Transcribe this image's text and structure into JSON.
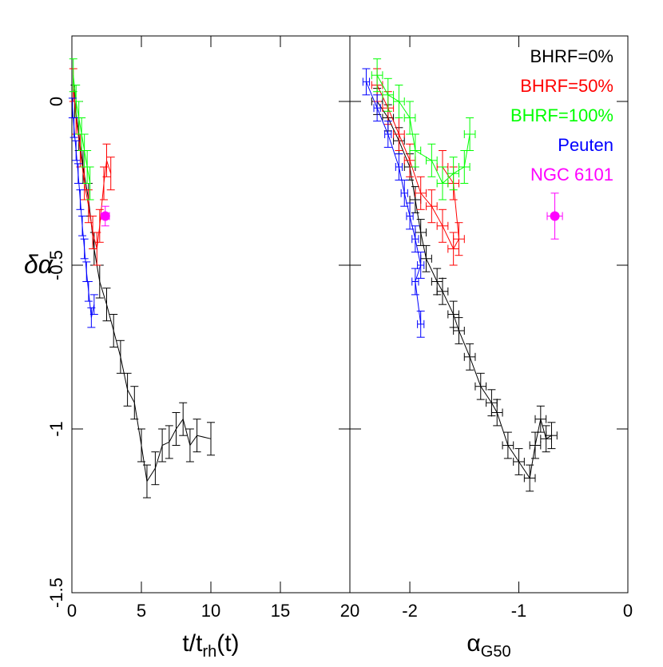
{
  "chart_data": [
    {
      "type": "errorbar",
      "x_label": {
        "main": "t/t",
        "sub": "rh",
        "tail": "(t)"
      },
      "y_label": "δα",
      "xlim": [
        0,
        20
      ],
      "ylim": [
        -1.5,
        0.2
      ],
      "xticks": [
        0,
        5,
        10,
        15,
        20
      ],
      "yticks": [
        0,
        -0.5,
        -1,
        -1.5
      ],
      "series": [
        {
          "color": "#000000",
          "x": [
            0.2,
            0.5,
            0.8,
            1.2,
            1.6,
            2.0,
            2.5,
            3.0,
            3.5,
            4.0,
            4.5,
            5.0,
            5.4,
            6.0,
            6.5,
            7.0,
            7.5,
            8.0,
            8.5,
            9.0,
            10.0
          ],
          "y": [
            0.0,
            -0.1,
            -0.2,
            -0.3,
            -0.45,
            -0.55,
            -0.62,
            -0.7,
            -0.78,
            -0.88,
            -0.92,
            -1.05,
            -1.16,
            -1.12,
            -1.05,
            -1.04,
            -1.0,
            -0.97,
            -1.05,
            -1.02,
            -1.03
          ],
          "yerr": 0.05
        },
        {
          "color": "#ff0000",
          "x": [
            0.1,
            0.3,
            0.6,
            0.9,
            1.2,
            1.5,
            1.8,
            2.0,
            2.3,
            2.5,
            2.8
          ],
          "y": [
            0.05,
            -0.05,
            -0.15,
            -0.25,
            -0.32,
            -0.4,
            -0.45,
            -0.38,
            -0.25,
            -0.18,
            -0.22
          ],
          "yerr": 0.05
        },
        {
          "color": "#00ff00",
          "x": [
            0.1,
            0.3,
            0.5,
            0.7,
            0.9,
            1.1,
            1.3
          ],
          "y": [
            0.08,
            0.0,
            -0.05,
            -0.1,
            -0.15,
            -0.2,
            -0.25
          ],
          "yerr": 0.05
        },
        {
          "color": "#0000ff",
          "x": [
            0.05,
            0.15,
            0.3,
            0.45,
            0.6,
            0.75,
            0.9,
            1.05,
            1.2,
            1.4,
            1.6
          ],
          "y": [
            -0.02,
            -0.08,
            -0.15,
            -0.22,
            -0.3,
            -0.38,
            -0.45,
            -0.52,
            -0.58,
            -0.66,
            -0.62
          ],
          "yerr": 0.03
        },
        {
          "color": "#ff00ff",
          "marker": "circle",
          "x": [
            2.4
          ],
          "y": [
            -0.35
          ],
          "yerr": 0.03,
          "xerr": 0.3
        }
      ]
    },
    {
      "type": "errorbar",
      "x_label": {
        "main": "α",
        "sub": "G50",
        "tail": ""
      },
      "xlim": [
        -2.55,
        0
      ],
      "ylim": [
        -1.5,
        0.2
      ],
      "xticks": [
        -2,
        -1,
        0
      ],
      "yticks": [
        0,
        -0.5,
        -1,
        -1.5
      ],
      "legend": "upper right",
      "series": [
        {
          "name": "BHRF=0%",
          "color": "#000000",
          "x": [
            -2.3,
            -2.2,
            -2.1,
            -2.0,
            -1.95,
            -1.9,
            -1.85,
            -1.75,
            -1.7,
            -1.6,
            -1.55,
            -1.45,
            -1.35,
            -1.25,
            -1.2,
            -1.1,
            -1.0,
            -0.9,
            -0.85,
            -0.8,
            -0.75,
            -0.7
          ],
          "y": [
            0.0,
            -0.05,
            -0.12,
            -0.2,
            -0.3,
            -0.4,
            -0.48,
            -0.55,
            -0.58,
            -0.65,
            -0.7,
            -0.78,
            -0.87,
            -0.92,
            -0.95,
            -1.05,
            -1.1,
            -1.15,
            -1.05,
            -0.97,
            -1.03,
            -1.02
          ],
          "yerr": 0.04,
          "xerr": 0.05
        },
        {
          "name": "BHRF=50%",
          "color": "#ff0000",
          "x": [
            -2.3,
            -2.2,
            -2.1,
            -2.0,
            -1.9,
            -1.8,
            -1.7,
            -1.6,
            -1.55,
            -1.6,
            -1.7
          ],
          "y": [
            0.05,
            -0.02,
            -0.1,
            -0.18,
            -0.28,
            -0.32,
            -0.38,
            -0.45,
            -0.42,
            -0.25,
            -0.2
          ],
          "yerr": 0.05,
          "xerr": 0.05
        },
        {
          "name": "BHRF=100%",
          "color": "#00ff00",
          "x": [
            -2.3,
            -2.2,
            -2.1,
            -2.0,
            -1.95,
            -1.8,
            -1.7,
            -1.6,
            -1.5,
            -1.45
          ],
          "y": [
            0.08,
            0.02,
            0.0,
            -0.05,
            -0.15,
            -0.18,
            -0.25,
            -0.22,
            -0.2,
            -0.1
          ],
          "yerr": 0.05,
          "xerr": 0.05
        },
        {
          "name": "Peuten",
          "color": "#0000ff",
          "x": [
            -2.4,
            -2.3,
            -2.2,
            -2.1,
            -2.05,
            -2.0,
            -1.95,
            -1.9,
            -1.95,
            -1.9
          ],
          "y": [
            0.06,
            -0.02,
            -0.1,
            -0.2,
            -0.28,
            -0.35,
            -0.42,
            -0.5,
            -0.55,
            -0.68
          ],
          "yerr": 0.04,
          "xerr": 0.03
        },
        {
          "name": "NGC 6101",
          "color": "#ff00ff",
          "marker": "circle",
          "x": [
            -0.67
          ],
          "y": [
            -0.35
          ],
          "yerr": 0.07,
          "xerr": 0.07
        }
      ]
    }
  ]
}
